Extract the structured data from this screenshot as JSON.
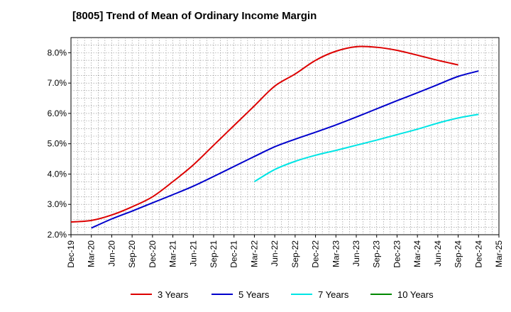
{
  "title": "[8005]  Trend of Mean of Ordinary Income Margin",
  "chart_data": {
    "type": "line",
    "title": "[8005]  Trend of Mean of Ordinary Income Margin",
    "xlabel": "",
    "ylabel": "",
    "x": [
      "Dec-19",
      "Mar-20",
      "Jun-20",
      "Sep-20",
      "Dec-20",
      "Mar-21",
      "Jun-21",
      "Sep-21",
      "Dec-21",
      "Mar-22",
      "Jun-22",
      "Sep-22",
      "Dec-22",
      "Mar-23",
      "Jun-23",
      "Sep-23",
      "Dec-23",
      "Mar-24",
      "Jun-24",
      "Sep-24",
      "Dec-24",
      "Mar-25"
    ],
    "y_ticks": [
      "2.0%",
      "3.0%",
      "4.0%",
      "5.0%",
      "6.0%",
      "7.0%",
      "8.0%"
    ],
    "ylim": [
      2.0,
      8.5
    ],
    "grid": true,
    "legend_position": "bottom",
    "series": [
      {
        "name": "3 Years",
        "color": "#dd0000",
        "values": [
          2.42,
          2.47,
          2.65,
          2.92,
          3.25,
          3.75,
          4.3,
          4.95,
          5.6,
          6.25,
          6.9,
          7.3,
          7.75,
          8.05,
          8.2,
          8.18,
          8.08,
          7.92,
          7.75,
          7.6,
          null,
          null
        ]
      },
      {
        "name": "5 Years",
        "color": "#0000cc",
        "values": [
          null,
          2.22,
          2.52,
          2.78,
          3.05,
          3.32,
          3.6,
          3.92,
          4.25,
          4.58,
          4.9,
          5.15,
          5.38,
          5.62,
          5.88,
          6.15,
          6.42,
          6.68,
          6.95,
          7.22,
          7.4,
          null
        ]
      },
      {
        "name": "7 Years",
        "color": "#00e5e5",
        "values": [
          null,
          null,
          null,
          null,
          null,
          null,
          null,
          null,
          null,
          3.75,
          4.15,
          4.42,
          4.62,
          4.78,
          4.95,
          5.12,
          5.3,
          5.48,
          5.68,
          5.85,
          5.97,
          null
        ]
      },
      {
        "name": "10 Years",
        "color": "#008800",
        "values": [
          null,
          null,
          null,
          null,
          null,
          null,
          null,
          null,
          null,
          null,
          null,
          null,
          null,
          null,
          null,
          null,
          null,
          null,
          null,
          null,
          null,
          null
        ]
      }
    ]
  }
}
